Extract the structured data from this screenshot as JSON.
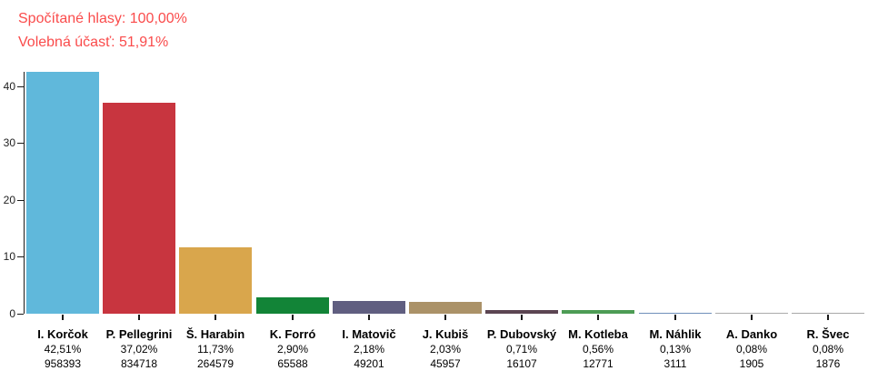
{
  "header": {
    "counted_votes": "Spočítané hlasy: 100,00%",
    "turnout": "Volebná účasť: 51,91%",
    "text_color": "#fa4b4b"
  },
  "chart_data": {
    "type": "bar",
    "title": "",
    "xlabel": "",
    "ylabel": "",
    "ylim": [
      0,
      42.51
    ],
    "yticks": [
      0,
      10,
      20,
      30,
      40
    ],
    "grid": false,
    "legend": false,
    "categories": [
      "I. Korčok",
      "P. Pellegrini",
      "Š. Harabin",
      "K. Forró",
      "I. Matovič",
      "J. Kubiš",
      "P. Dubovský",
      "M. Kotleba",
      "M. Náhlik",
      "A. Danko",
      "R. Švec"
    ],
    "values": [
      42.51,
      37.02,
      11.73,
      2.9,
      2.18,
      2.03,
      0.71,
      0.56,
      0.13,
      0.08,
      0.08
    ],
    "percent_labels": [
      "42,51%",
      "37,02%",
      "11,73%",
      "2,90%",
      "2,18%",
      "2,03%",
      "0,71%",
      "0,56%",
      "0,13%",
      "0,08%",
      "0,08%"
    ],
    "votes": [
      958393,
      834718,
      264579,
      65588,
      49201,
      45957,
      16107,
      12771,
      3111,
      1905,
      1876
    ],
    "votes_labels": [
      "958393",
      "834718",
      "264579",
      "65588",
      "49201",
      "45957",
      "16107",
      "12771",
      "3111",
      "1905",
      "1876"
    ],
    "bar_colors": [
      "#60b8db",
      "#c8353f",
      "#d9a64c",
      "#128437",
      "#605e80",
      "#ab9268",
      "#5c4552",
      "#4d9c55",
      "#7090bb",
      "#ababab",
      "#a8a8a8"
    ],
    "axis_color": "#1a1a1a",
    "label_color": "#000000"
  }
}
